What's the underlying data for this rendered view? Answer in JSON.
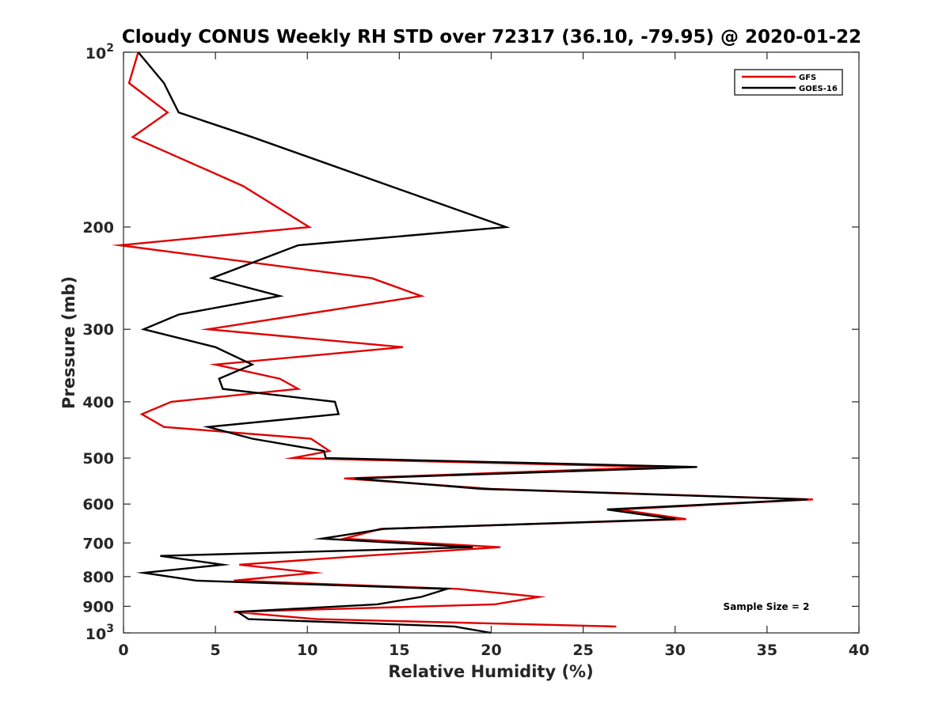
{
  "chart_data": {
    "type": "line",
    "title": "Cloudy CONUS Weekly RH STD over 72317 (36.10, -79.95) @ 2020-01-22",
    "xlabel": "Relative Humidity (%)",
    "ylabel": "Pressure (mb)",
    "xlim": [
      0,
      40
    ],
    "ylim": [
      100,
      1000
    ],
    "y_scale": "log",
    "y_reversed": true,
    "grid": false,
    "legend_position": "top-right",
    "x_ticks": [
      0,
      5,
      10,
      15,
      20,
      25,
      30,
      35,
      40
    ],
    "x_tick_labels": [
      "0",
      "5",
      "10",
      "15",
      "20",
      "25",
      "30",
      "35",
      "40"
    ],
    "y_ticks": [
      200,
      300,
      400,
      500,
      600,
      700,
      800,
      900
    ],
    "y_tick_labels": [
      "200",
      "300",
      "400",
      "500",
      "600",
      "700",
      "800",
      "900"
    ],
    "y_tick_top": {
      "base": "10",
      "exp": "2"
    },
    "y_tick_bottom": {
      "base": "10",
      "exp": "3"
    },
    "annotation": "Sample Size = 2",
    "series": [
      {
        "name": "GFS",
        "color": "#e00000",
        "points": [
          {
            "x": 0.8,
            "p": 100
          },
          {
            "x": 0.3,
            "p": 113
          },
          {
            "x": 2.4,
            "p": 127
          },
          {
            "x": 0.5,
            "p": 140
          },
          {
            "x": 6.5,
            "p": 170
          },
          {
            "x": 10.1,
            "p": 200
          },
          {
            "x": -0.2,
            "p": 215
          },
          {
            "x": 13.5,
            "p": 245
          },
          {
            "x": 16.2,
            "p": 263
          },
          {
            "x": 4.6,
            "p": 300
          },
          {
            "x": 15.2,
            "p": 322
          },
          {
            "x": 5.0,
            "p": 345
          },
          {
            "x": 8.5,
            "p": 365
          },
          {
            "x": 9.5,
            "p": 380
          },
          {
            "x": 2.6,
            "p": 400
          },
          {
            "x": 1.0,
            "p": 420
          },
          {
            "x": 2.2,
            "p": 442
          },
          {
            "x": 10.2,
            "p": 463
          },
          {
            "x": 11.2,
            "p": 486
          },
          {
            "x": 9.2,
            "p": 500
          },
          {
            "x": 29.2,
            "p": 518
          },
          {
            "x": 12.0,
            "p": 542
          },
          {
            "x": 20.0,
            "p": 565
          },
          {
            "x": 37.5,
            "p": 589
          },
          {
            "x": 26.9,
            "p": 613
          },
          {
            "x": 30.6,
            "p": 637
          },
          {
            "x": 14.0,
            "p": 662
          },
          {
            "x": 12.0,
            "p": 688
          },
          {
            "x": 20.5,
            "p": 712
          },
          {
            "x": 13.0,
            "p": 737
          },
          {
            "x": 6.3,
            "p": 763
          },
          {
            "x": 10.4,
            "p": 788
          },
          {
            "x": 6.0,
            "p": 813
          },
          {
            "x": 18.2,
            "p": 840
          },
          {
            "x": 22.6,
            "p": 867
          },
          {
            "x": 20.2,
            "p": 893
          },
          {
            "x": 6.0,
            "p": 920
          },
          {
            "x": 10.5,
            "p": 947
          },
          {
            "x": 26.8,
            "p": 975
          }
        ]
      },
      {
        "name": "GOES-16",
        "color": "#000000",
        "points": [
          {
            "x": 0.8,
            "p": 100
          },
          {
            "x": 2.2,
            "p": 113
          },
          {
            "x": 3.0,
            "p": 127
          },
          {
            "x": 7.0,
            "p": 140
          },
          {
            "x": 14.5,
            "p": 170
          },
          {
            "x": 20.8,
            "p": 200
          },
          {
            "x": 9.5,
            "p": 215
          },
          {
            "x": 4.8,
            "p": 245
          },
          {
            "x": 8.5,
            "p": 263
          },
          {
            "x": 3.0,
            "p": 283
          },
          {
            "x": 1.1,
            "p": 300
          },
          {
            "x": 5.0,
            "p": 322
          },
          {
            "x": 7.0,
            "p": 345
          },
          {
            "x": 5.2,
            "p": 365
          },
          {
            "x": 5.4,
            "p": 380
          },
          {
            "x": 11.5,
            "p": 400
          },
          {
            "x": 11.7,
            "p": 420
          },
          {
            "x": 4.6,
            "p": 442
          },
          {
            "x": 7.0,
            "p": 463
          },
          {
            "x": 10.9,
            "p": 486
          },
          {
            "x": 11.0,
            "p": 500
          },
          {
            "x": 31.2,
            "p": 518
          },
          {
            "x": 12.6,
            "p": 542
          },
          {
            "x": 19.5,
            "p": 565
          },
          {
            "x": 37.2,
            "p": 589
          },
          {
            "x": 26.3,
            "p": 613
          },
          {
            "x": 30.0,
            "p": 637
          },
          {
            "x": 14.2,
            "p": 662
          },
          {
            "x": 10.8,
            "p": 688
          },
          {
            "x": 19.0,
            "p": 712
          },
          {
            "x": 2.0,
            "p": 737
          },
          {
            "x": 5.4,
            "p": 763
          },
          {
            "x": 1.1,
            "p": 788
          },
          {
            "x": 4.0,
            "p": 813
          },
          {
            "x": 17.6,
            "p": 840
          },
          {
            "x": 16.2,
            "p": 867
          },
          {
            "x": 13.8,
            "p": 893
          },
          {
            "x": 6.2,
            "p": 920
          },
          {
            "x": 6.8,
            "p": 947
          },
          {
            "x": 18.0,
            "p": 975
          },
          {
            "x": 20.0,
            "p": 1000
          }
        ]
      }
    ]
  }
}
